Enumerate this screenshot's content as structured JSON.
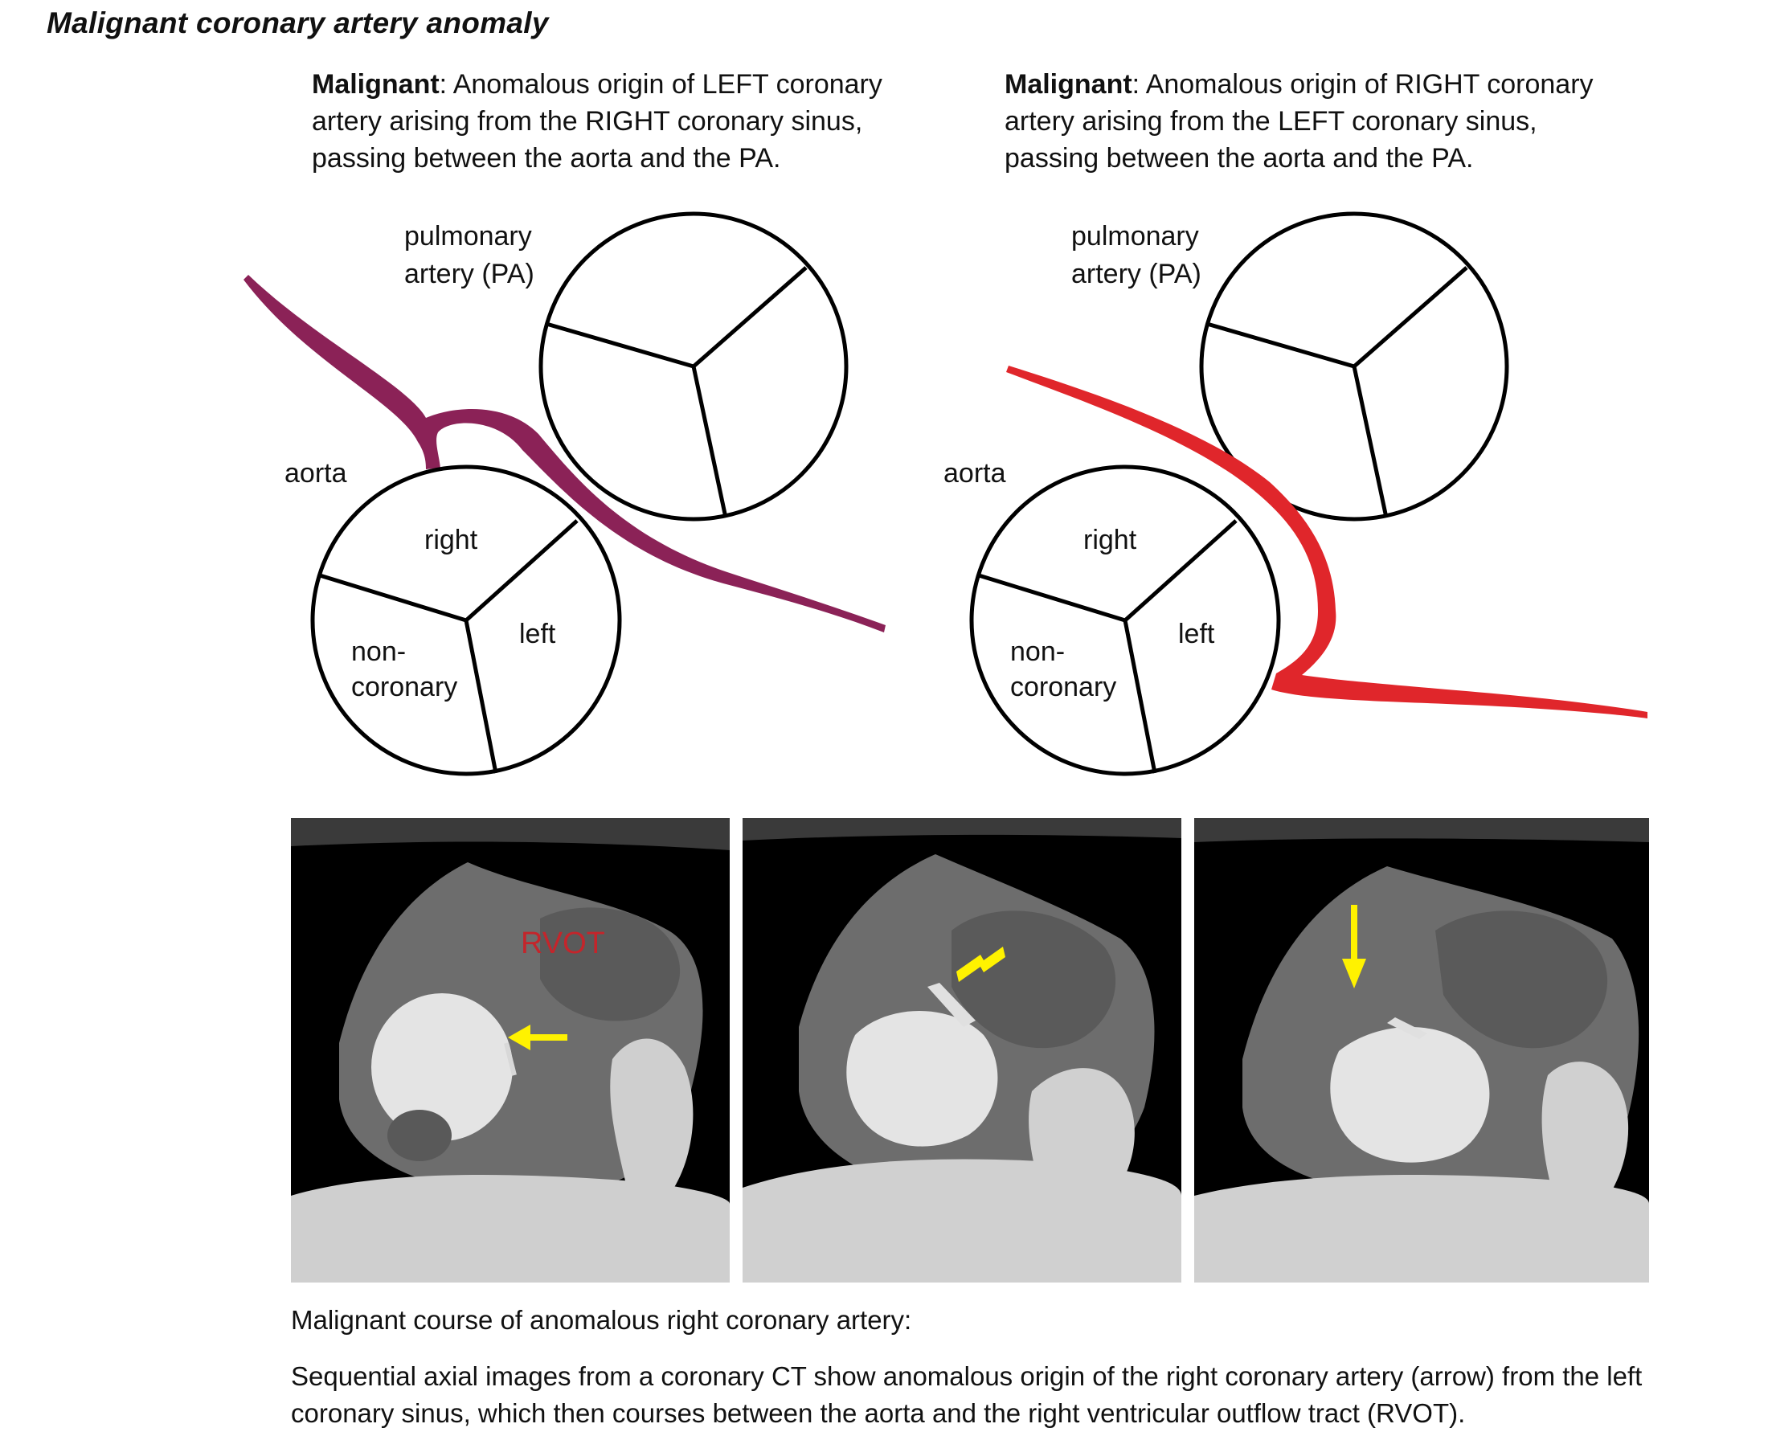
{
  "title": "Malignant coronary artery anomaly",
  "left_panel": {
    "bold": "Malignant",
    "description": ": Anomalous origin of LEFT coronary artery arising from the RIGHT coronary sinus, passing between the aorta and the PA.",
    "pa_label_1": "pulmonary",
    "pa_label_2": "artery (PA)",
    "aorta_label": "aorta",
    "cusp_right": "right",
    "cusp_left": "left",
    "cusp_non_1": "non-",
    "cusp_non_2": "coronary",
    "vessel_color": "#8b2257"
  },
  "right_panel": {
    "bold": "Malignant",
    "description": ": Anomalous origin of RIGHT coronary artery arising from the LEFT coronary sinus, passing between the aorta and the PA.",
    "pa_label_1": "pulmonary",
    "pa_label_2": "artery (PA)",
    "aorta_label": "aorta",
    "cusp_right": "right",
    "cusp_left": "left",
    "cusp_non_1": "non-",
    "cusp_non_2": "coronary",
    "vessel_color": "#e0262b"
  },
  "ct_images": {
    "rvot_label": "RVOT",
    "rvot_color": "#c4252b",
    "arrow_color": "#fff200",
    "arrows": [
      "arrow-left",
      "arrow-down-left",
      "arrow-down"
    ]
  },
  "caption": {
    "title": "Malignant course of anomalous right coronary artery:",
    "body": "Sequential axial images from a coronary CT show anomalous origin of the right coronary artery (arrow) from the left coronary sinus, which then courses between the aorta and the right ventricular outflow tract (RVOT)."
  }
}
